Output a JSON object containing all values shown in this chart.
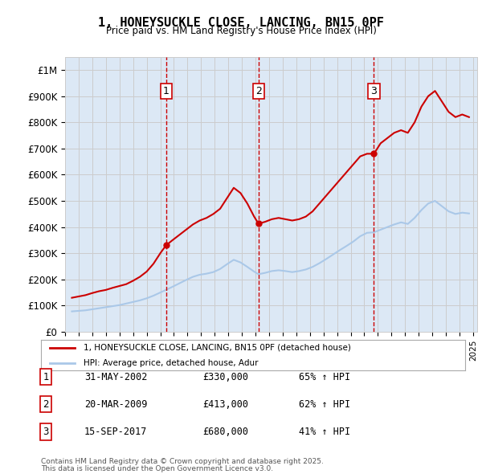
{
  "title": "1, HONEYSUCKLE CLOSE, LANCING, BN15 0PF",
  "subtitle": "Price paid vs. HM Land Registry's House Price Index (HPI)",
  "legend_line1": "1, HONEYSUCKLE CLOSE, LANCING, BN15 0PF (detached house)",
  "legend_line2": "HPI: Average price, detached house, Adur",
  "footer1": "Contains HM Land Registry data © Crown copyright and database right 2025.",
  "footer2": "This data is licensed under the Open Government Licence v3.0.",
  "ylim": [
    0,
    1050000
  ],
  "yticks": [
    0,
    100000,
    200000,
    300000,
    400000,
    500000,
    600000,
    700000,
    800000,
    900000,
    1000000
  ],
  "ytick_labels": [
    "£0",
    "£100K",
    "£200K",
    "£300K",
    "£400K",
    "£500K",
    "£600K",
    "£700K",
    "£800K",
    "£900K",
    "£1M"
  ],
  "sale_color": "#cc0000",
  "hpi_color": "#aac8e8",
  "grid_color": "#cccccc",
  "bg_color": "#dce8f5",
  "plot_bg": "#dce8f5",
  "transaction_marker_color": "#cc0000",
  "vline_color": "#cc0000",
  "transactions": [
    {
      "label": "1",
      "date_str": "31-MAY-2002",
      "price": 330000,
      "hpi_pct": "65% ↑ HPI",
      "x": 2002.42
    },
    {
      "label": "2",
      "date_str": "20-MAR-2009",
      "price": 413000,
      "hpi_pct": "62% ↑ HPI",
      "x": 2009.22
    },
    {
      "label": "3",
      "date_str": "15-SEP-2017",
      "price": 680000,
      "hpi_pct": "41% ↑ HPI",
      "x": 2017.71
    }
  ],
  "sale_x": [
    1995.5,
    1996.0,
    1996.5,
    1997.0,
    1997.5,
    1998.0,
    1998.5,
    1999.0,
    1999.5,
    2000.0,
    2000.5,
    2001.0,
    2001.5,
    2002.0,
    2002.42,
    2002.9,
    2003.4,
    2003.9,
    2004.4,
    2004.9,
    2005.4,
    2005.9,
    2006.4,
    2006.9,
    2007.4,
    2007.9,
    2008.4,
    2008.9,
    2009.22,
    2009.7,
    2010.2,
    2010.7,
    2011.2,
    2011.7,
    2012.2,
    2012.7,
    2013.2,
    2013.7,
    2014.2,
    2014.7,
    2015.2,
    2015.7,
    2016.2,
    2016.7,
    2017.2,
    2017.71,
    2018.2,
    2018.7,
    2019.2,
    2019.7,
    2020.2,
    2020.7,
    2021.2,
    2021.7,
    2022.2,
    2022.7,
    2023.2,
    2023.7,
    2024.2,
    2024.7
  ],
  "sale_y": [
    130000,
    135000,
    140000,
    148000,
    155000,
    160000,
    168000,
    175000,
    182000,
    195000,
    210000,
    230000,
    260000,
    300000,
    330000,
    350000,
    370000,
    390000,
    410000,
    425000,
    435000,
    450000,
    470000,
    510000,
    550000,
    530000,
    490000,
    440000,
    413000,
    420000,
    430000,
    435000,
    430000,
    425000,
    430000,
    440000,
    460000,
    490000,
    520000,
    550000,
    580000,
    610000,
    640000,
    670000,
    680000,
    680000,
    720000,
    740000,
    760000,
    770000,
    760000,
    800000,
    860000,
    900000,
    920000,
    880000,
    840000,
    820000,
    830000,
    820000
  ],
  "hpi_x": [
    1995.5,
    1996.0,
    1996.5,
    1997.0,
    1997.5,
    1998.0,
    1998.5,
    1999.0,
    1999.5,
    2000.0,
    2000.5,
    2001.0,
    2001.5,
    2002.0,
    2002.5,
    2002.9,
    2003.4,
    2003.9,
    2004.4,
    2004.9,
    2005.4,
    2005.9,
    2006.4,
    2006.9,
    2007.4,
    2007.9,
    2008.4,
    2008.9,
    2009.22,
    2009.7,
    2010.2,
    2010.7,
    2011.2,
    2011.7,
    2012.2,
    2012.7,
    2013.2,
    2013.7,
    2014.2,
    2014.7,
    2015.2,
    2015.7,
    2016.2,
    2016.7,
    2017.2,
    2017.71,
    2018.2,
    2018.7,
    2019.2,
    2019.7,
    2020.2,
    2020.7,
    2021.2,
    2021.7,
    2022.2,
    2022.7,
    2023.2,
    2023.7,
    2024.2,
    2024.7
  ],
  "hpi_y": [
    78000,
    80000,
    82000,
    86000,
    90000,
    94000,
    98000,
    102000,
    108000,
    114000,
    120000,
    128000,
    138000,
    150000,
    162000,
    172000,
    185000,
    198000,
    210000,
    218000,
    222000,
    228000,
    240000,
    258000,
    275000,
    265000,
    248000,
    230000,
    220000,
    225000,
    232000,
    235000,
    232000,
    228000,
    232000,
    238000,
    248000,
    262000,
    278000,
    295000,
    312000,
    328000,
    345000,
    365000,
    378000,
    380000,
    390000,
    400000,
    410000,
    418000,
    412000,
    435000,
    465000,
    490000,
    500000,
    480000,
    460000,
    450000,
    455000,
    452000
  ]
}
